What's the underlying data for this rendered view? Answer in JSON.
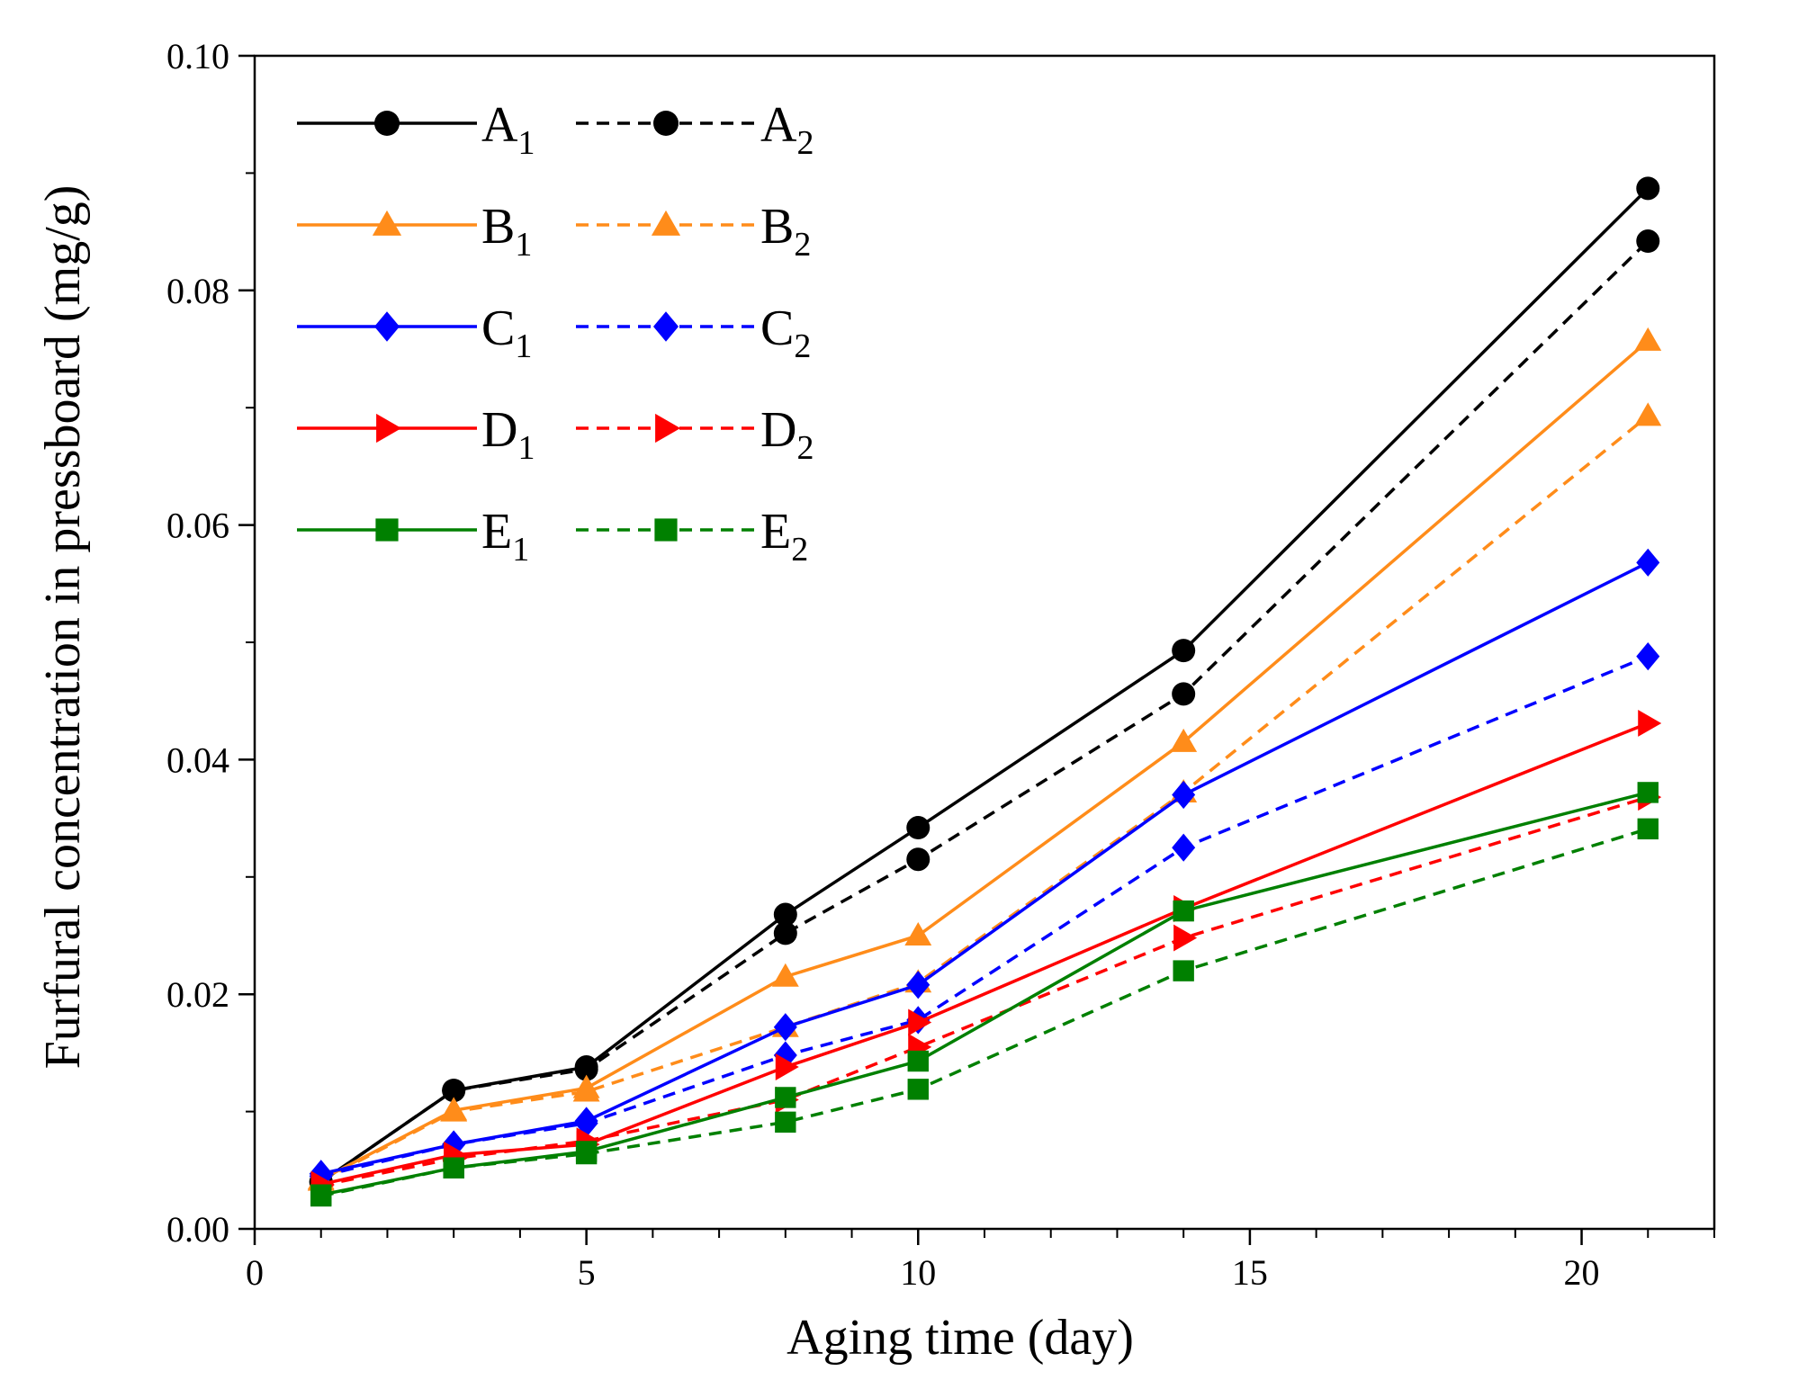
{
  "chart_data": {
    "type": "line",
    "title": "",
    "xlabel": "Aging time (day)",
    "ylabel": "Furfural concentration in pressboard (mg/g)",
    "xlim": [
      0,
      22
    ],
    "ylim": [
      0,
      0.1
    ],
    "xticks": [
      0,
      5,
      10,
      15,
      20
    ],
    "xtick_labels": [
      "0",
      "5",
      "10",
      "15",
      "20"
    ],
    "yticks": [
      0,
      0.02,
      0.04,
      0.06,
      0.08,
      0.1
    ],
    "ytick_labels": [
      "0.00",
      "0.02",
      "0.04",
      "0.06",
      "0.08",
      "0.10"
    ],
    "grid": false,
    "legend_position": "top-left",
    "x": [
      1,
      3,
      5,
      8,
      10,
      14,
      21
    ],
    "series": [
      {
        "name": "A",
        "sub": "1",
        "color": "#000000",
        "dash": false,
        "marker": "circle",
        "values": [
          0.004,
          0.0118,
          0.0138,
          0.0268,
          0.0342,
          0.0493,
          0.0887
        ]
      },
      {
        "name": "A",
        "sub": "2",
        "color": "#000000",
        "dash": true,
        "marker": "circle",
        "values": [
          0.004,
          0.0118,
          0.0136,
          0.0252,
          0.0315,
          0.0456,
          0.0842
        ]
      },
      {
        "name": "B",
        "sub": "1",
        "color": "#FF8C1A",
        "dash": false,
        "marker": "triangle",
        "values": [
          0.0042,
          0.0101,
          0.012,
          0.0215,
          0.025,
          0.0415,
          0.0757
        ]
      },
      {
        "name": "B",
        "sub": "2",
        "color": "#FF8C1A",
        "dash": true,
        "marker": "triangle",
        "values": [
          0.0041,
          0.01,
          0.0117,
          0.0172,
          0.021,
          0.0372,
          0.0693
        ]
      },
      {
        "name": "C",
        "sub": "1",
        "color": "#0000FF",
        "dash": false,
        "marker": "diamond",
        "values": [
          0.0047,
          0.0072,
          0.0092,
          0.0172,
          0.0208,
          0.037,
          0.0568
        ]
      },
      {
        "name": "C",
        "sub": "2",
        "color": "#0000FF",
        "dash": true,
        "marker": "diamond",
        "values": [
          0.0045,
          0.0072,
          0.009,
          0.0148,
          0.0178,
          0.0325,
          0.0488
        ]
      },
      {
        "name": "D",
        "sub": "1",
        "color": "#FF0000",
        "dash": false,
        "marker": "triangle-right",
        "values": [
          0.0038,
          0.0063,
          0.0072,
          0.0138,
          0.0176,
          0.0273,
          0.0431
        ]
      },
      {
        "name": "D",
        "sub": "2",
        "color": "#FF0000",
        "dash": true,
        "marker": "triangle-right",
        "values": [
          0.0037,
          0.006,
          0.0075,
          0.011,
          0.0155,
          0.0248,
          0.0368
        ]
      },
      {
        "name": "E",
        "sub": "1",
        "color": "#008000",
        "dash": false,
        "marker": "square",
        "values": [
          0.0029,
          0.0052,
          0.0066,
          0.0112,
          0.0143,
          0.0271,
          0.0372
        ]
      },
      {
        "name": "E",
        "sub": "2",
        "color": "#008000",
        "dash": true,
        "marker": "square",
        "values": [
          0.0028,
          0.0052,
          0.0064,
          0.0091,
          0.0119,
          0.022,
          0.0341
        ]
      }
    ]
  }
}
